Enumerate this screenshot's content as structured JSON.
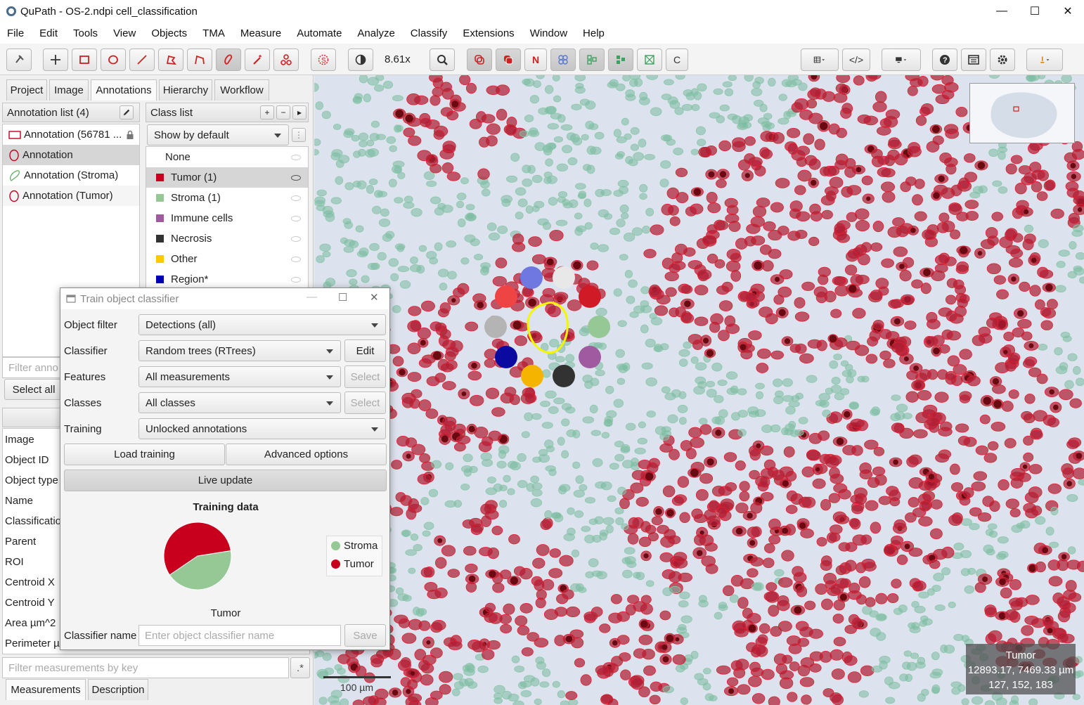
{
  "window": {
    "title": "QuPath - OS-2.ndpi cell_classification",
    "minimize": "—",
    "maximize": "☐",
    "close": "✕"
  },
  "menu": [
    "File",
    "Edit",
    "Tools",
    "View",
    "Objects",
    "TMA",
    "Measure",
    "Automate",
    "Analyze",
    "Classify",
    "Extensions",
    "Window",
    "Help"
  ],
  "toolbar": {
    "zoom": "8.61x",
    "n_label": "N",
    "c_label": "C",
    "code_label": "</>"
  },
  "tabs": [
    "Project",
    "Image",
    "Annotations",
    "Hierarchy",
    "Workflow"
  ],
  "annotation_list": {
    "header": "Annotation list (4)",
    "items": [
      "Annotation (56781 ...",
      "Annotation",
      "Annotation (Stroma)",
      "Annotation (Tumor)"
    ],
    "filter_placeholder": "Filter anno",
    "select_all": "Select all"
  },
  "class_list": {
    "header": "Class list",
    "add": "+",
    "remove": "−",
    "more": "▸",
    "show_by_default": "Show by default",
    "menu": "⋮",
    "items": [
      {
        "name": "None",
        "color": ""
      },
      {
        "name": "Tumor (1)",
        "color": "#c8001e"
      },
      {
        "name": "Stroma (1)",
        "color": "#96c896"
      },
      {
        "name": "Immune cells",
        "color": "#a05aa0"
      },
      {
        "name": "Necrosis",
        "color": "#323232"
      },
      {
        "name": "Other",
        "color": "#ffc800"
      },
      {
        "name": "Region*",
        "color": "#0000b4"
      }
    ]
  },
  "measurements": {
    "keys": [
      "Image",
      "Object ID",
      "Object type",
      "Name",
      "Classificatio",
      "Parent",
      "ROI",
      "Centroid X",
      "Centroid Y",
      "Area µm^2",
      "Perimeter µ"
    ],
    "filter_placeholder": "Filter measurements by key",
    "regex": ".*"
  },
  "bottom_tabs": [
    "Measurements",
    "Description"
  ],
  "dialog": {
    "title": "Train object classifier",
    "object_filter": {
      "label": "Object filter",
      "value": "Detections (all)"
    },
    "classifier": {
      "label": "Classifier",
      "value": "Random trees (RTrees)",
      "button": "Edit"
    },
    "features": {
      "label": "Features",
      "value": "All measurements",
      "button": "Select"
    },
    "classes": {
      "label": "Classes",
      "value": "All classes",
      "button": "Select"
    },
    "training": {
      "label": "Training",
      "value": "Unlocked annotations"
    },
    "load_training": "Load training",
    "advanced_options": "Advanced options",
    "live_update": "Live update",
    "classifier_name": {
      "label": "Classifier name",
      "placeholder": "Enter object classifier name",
      "save": "Save"
    }
  },
  "chart_data": {
    "type": "pie",
    "title": "Training data",
    "categories": [
      "Stroma",
      "Tumor"
    ],
    "values": [
      43,
      57
    ],
    "colors": [
      "#96c896",
      "#c8001e"
    ],
    "slice_label": "Tumor",
    "legend_position": "right"
  },
  "viewer": {
    "info_class": "Tumor",
    "info_coords": "12893.17, 7469.33 µm",
    "info_rgb": "127, 152, 183",
    "scale": "100 µm"
  }
}
